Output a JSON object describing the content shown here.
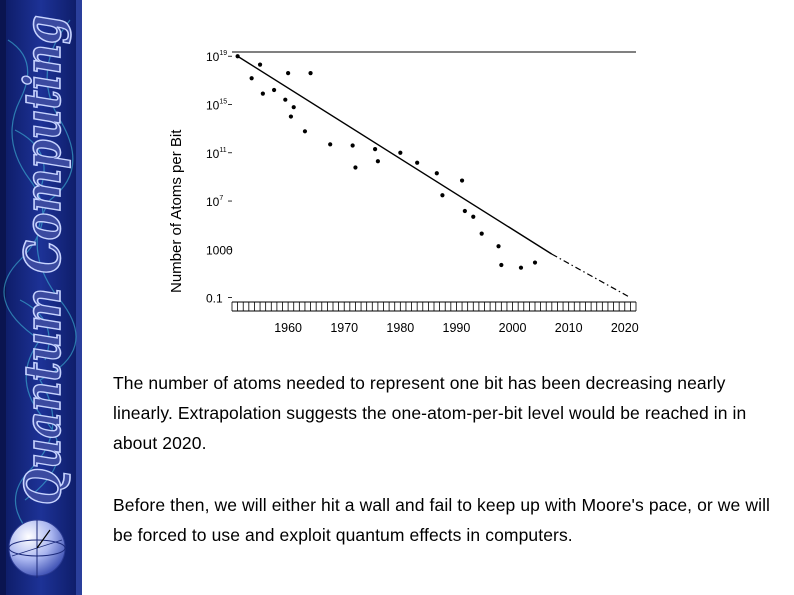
{
  "sidebar": {
    "title": "Quantum Computing",
    "colors": {
      "band_top": "#1b2f8f",
      "band_bottom": "#111f6e",
      "accent": "#39b6d6",
      "title_fill": "#3d4c9e"
    }
  },
  "chart_data": {
    "type": "scatter",
    "ylabel": "Number of Atoms per Bit",
    "xlabel": "",
    "y_scale": "log",
    "xlim": [
      1950,
      2022
    ],
    "ylim": [
      0.1,
      1e+19
    ],
    "x_ticks": [
      1960,
      1970,
      1980,
      1990,
      2000,
      2010,
      2020
    ],
    "x_tick_labels": [
      "1960",
      "1970",
      "1980",
      "1990",
      "2000",
      "2010",
      "2020"
    ],
    "y_ticks": [
      1e+19,
      1000000000000000.0,
      100000000000.0,
      10000000.0,
      1000,
      0.1
    ],
    "y_tick_labels": [
      {
        "base": "10",
        "exp": "19"
      },
      {
        "base": "10",
        "exp": "15"
      },
      {
        "base": "10",
        "exp": "11"
      },
      {
        "base": "10",
        "exp": "7"
      },
      {
        "base": "1000",
        "exp": ""
      },
      {
        "base": "0.1",
        "exp": ""
      }
    ],
    "points": [
      {
        "x": 1951.0,
        "y": 1e+19
      },
      {
        "x": 1953.5,
        "y": 1.5e+17
      },
      {
        "x": 1955.0,
        "y": 2e+18
      },
      {
        "x": 1955.5,
        "y": 8000000000000000.0
      },
      {
        "x": 1957.5,
        "y": 1.6e+16
      },
      {
        "x": 1959.5,
        "y": 2500000000000000.0
      },
      {
        "x": 1960.0,
        "y": 4e+17
      },
      {
        "x": 1960.5,
        "y": 100000000000000.0
      },
      {
        "x": 1961.0,
        "y": 600000000000000.0
      },
      {
        "x": 1963.0,
        "y": 6000000000000.0
      },
      {
        "x": 1964.0,
        "y": 4e+17
      },
      {
        "x": 1967.5,
        "y": 500000000000.0
      },
      {
        "x": 1971.5,
        "y": 400000000000.0
      },
      {
        "x": 1972.0,
        "y": 6000000000.0
      },
      {
        "x": 1975.5,
        "y": 200000000000.0
      },
      {
        "x": 1976.0,
        "y": 20000000000.0
      },
      {
        "x": 1980.0,
        "y": 100000000000.0
      },
      {
        "x": 1983.0,
        "y": 15000000000.0
      },
      {
        "x": 1986.5,
        "y": 2000000000.0
      },
      {
        "x": 1987.5,
        "y": 30000000.0
      },
      {
        "x": 1991.0,
        "y": 500000000.0
      },
      {
        "x": 1991.5,
        "y": 1500000.0
      },
      {
        "x": 1993.0,
        "y": 500000.0
      },
      {
        "x": 1994.5,
        "y": 20000.0
      },
      {
        "x": 1997.5,
        "y": 1800
      },
      {
        "x": 1998.0,
        "y": 50
      },
      {
        "x": 2001.5,
        "y": 30
      },
      {
        "x": 2004.0,
        "y": 80
      }
    ],
    "trend": {
      "from": [
        1951,
        1e+19
      ],
      "solid_to": [
        2007,
        400.0
      ],
      "dashed_to": [
        2021,
        0.1
      ]
    }
  },
  "text": {
    "p1": "The number of atoms needed to represent one bit has been decreasing nearly linearly.  Extrapolation suggests the one-atom-per-bit level would be reached in in about 2020.",
    "p2": "Before then, we will either hit a wall and fail to keep up with Moore's pace, or we will be forced to use and exploit quantum effects in computers."
  }
}
